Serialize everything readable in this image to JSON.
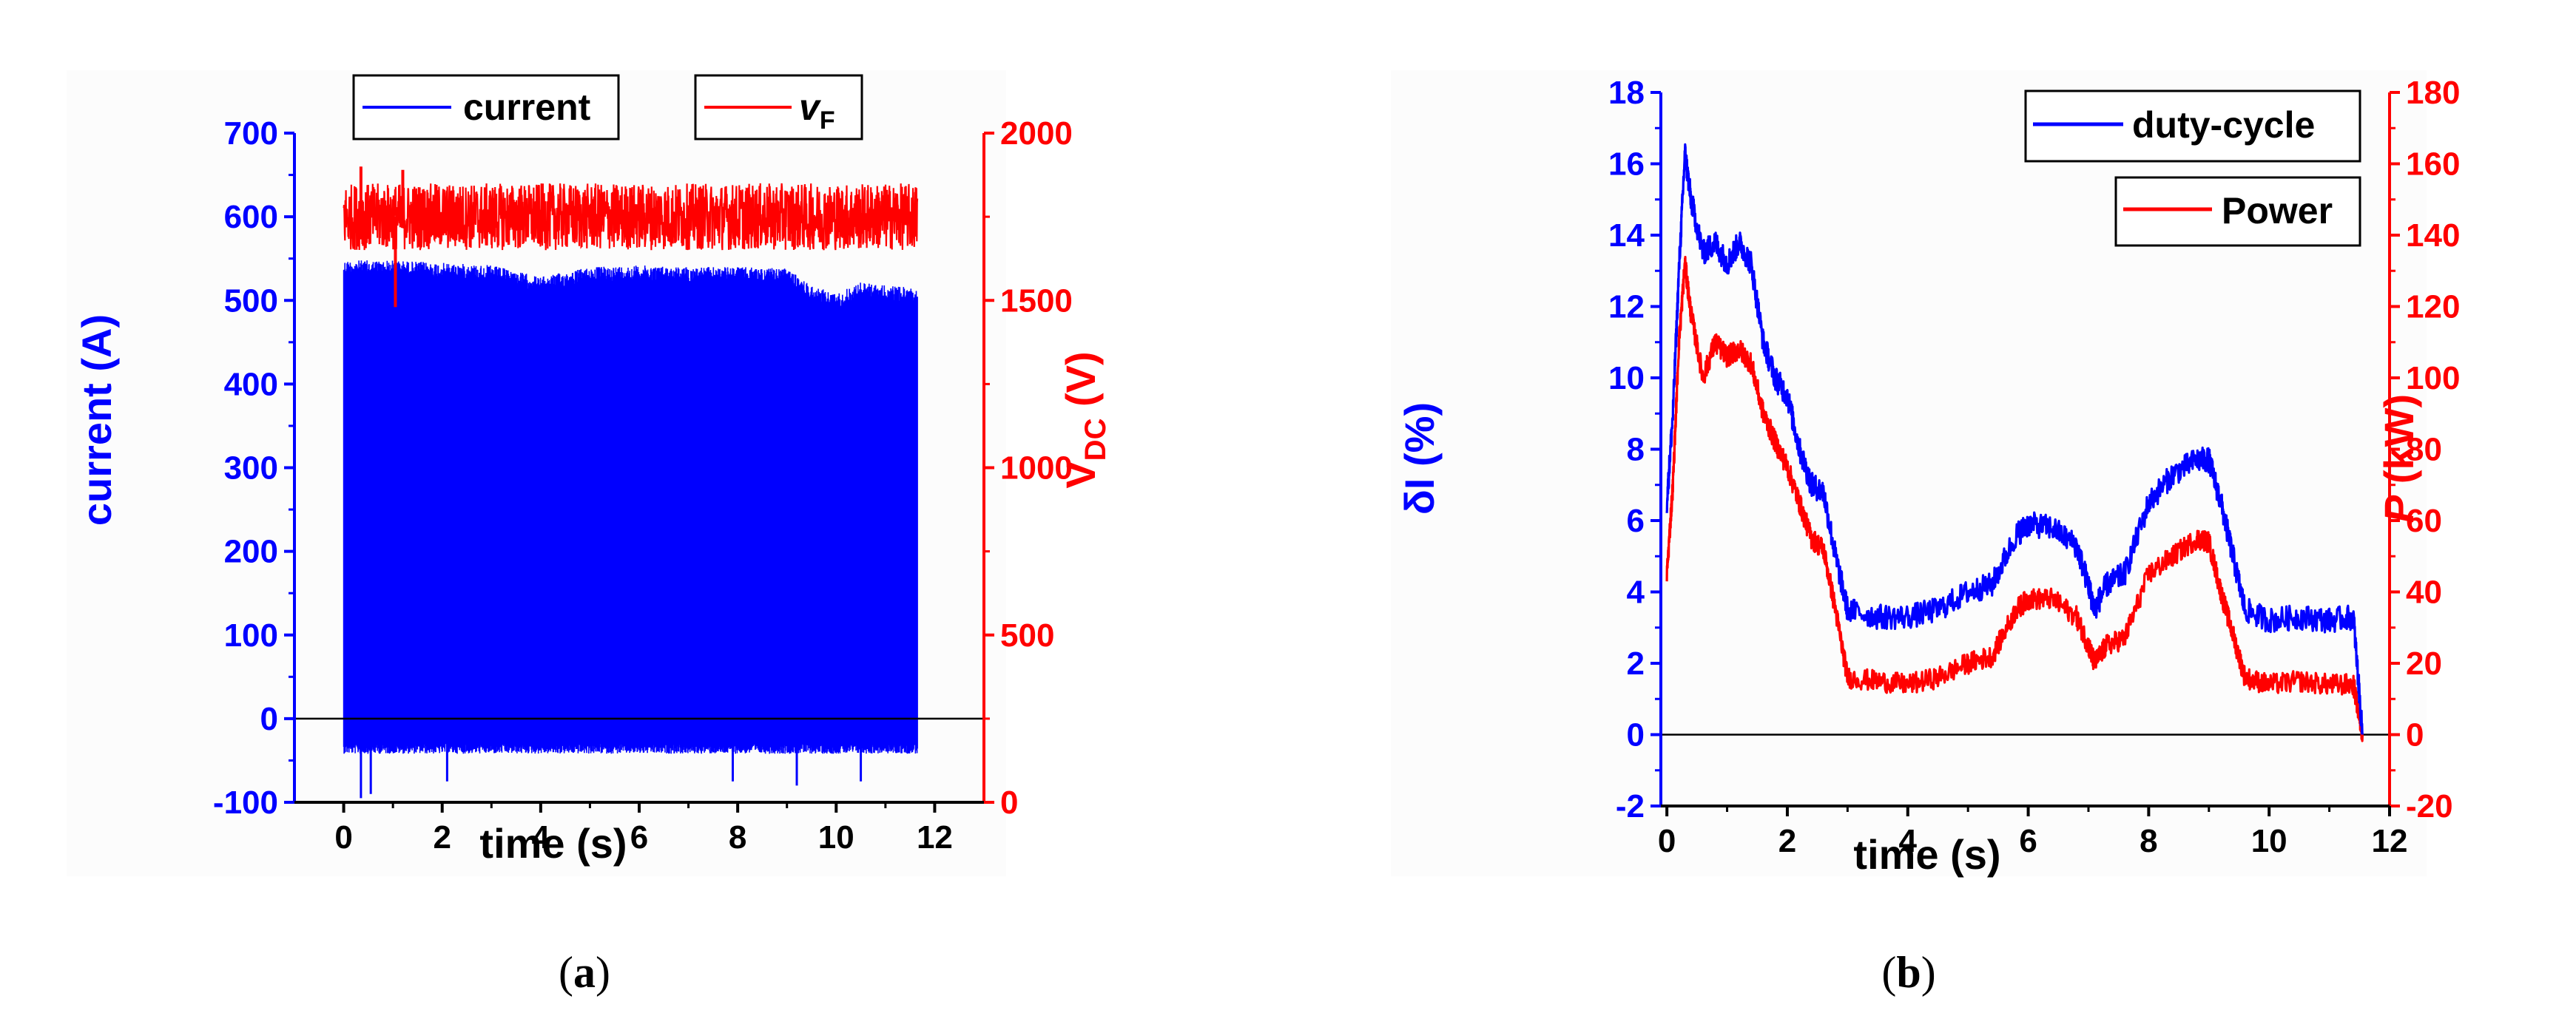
{
  "colors": {
    "blue": "#0000ff",
    "red": "#ff0000",
    "black": "#000000"
  },
  "chart_data": [
    {
      "type": "line",
      "panel": "a",
      "caption_open": "(",
      "caption_letter": "a",
      "caption_close": ")",
      "xlabel": "time (s)",
      "xlim": [
        -1,
        13
      ],
      "xticks": [
        0,
        2,
        4,
        6,
        8,
        10,
        12
      ],
      "ylabel": "current (A)",
      "ylim": [
        -100,
        700
      ],
      "yticks": [
        -100,
        0,
        100,
        200,
        300,
        400,
        500,
        600,
        700
      ],
      "y2label_main": "V",
      "y2label_sub": "DC",
      "y2label_unit": " (V)",
      "y2lim": [
        0,
        2000
      ],
      "y2ticks": [
        0,
        500,
        1000,
        1500,
        2000
      ],
      "legend": [
        {
          "label": "current",
          "italic": false,
          "sub": ""
        },
        {
          "label": "v",
          "italic": true,
          "sub": "F"
        }
      ],
      "series": [
        {
          "name": "current",
          "axis": "left",
          "color": "#0000ff",
          "kind": "band",
          "x_range": [
            0,
            11.65
          ],
          "low": -30,
          "high": 545,
          "envelope_x": [
            0,
            1,
            2,
            3,
            4,
            5,
            6,
            7,
            8,
            9,
            9.5,
            10,
            10.5,
            11,
            11.6
          ],
          "envelope_high": [
            548,
            548,
            545,
            542,
            528,
            540,
            542,
            540,
            540,
            538,
            518,
            508,
            522,
            518,
            515
          ],
          "spikes": [
            [
              0.35,
              -95
            ],
            [
              0.55,
              -90
            ],
            [
              2.1,
              -75
            ],
            [
              7.9,
              -75
            ],
            [
              9.2,
              -80
            ],
            [
              10.5,
              -75
            ]
          ]
        },
        {
          "name": "vF",
          "axis": "right",
          "color": "#ff0000",
          "kind": "band",
          "x_range": [
            0,
            11.65
          ],
          "low": 1650,
          "high": 1850,
          "spikes": [
            [
              1.05,
              1480
            ],
            [
              0.35,
              1900
            ],
            [
              1.2,
              1890
            ]
          ]
        },
        {
          "name": "zero-line",
          "axis": "left",
          "color": "#000000",
          "kind": "hline",
          "y": 0
        }
      ]
    },
    {
      "type": "line",
      "panel": "b",
      "caption_open": "(",
      "caption_letter": "b",
      "caption_close": ")",
      "xlabel": "time (s)",
      "xlim": [
        -0.1,
        12
      ],
      "xticks": [
        0,
        2,
        4,
        6,
        8,
        10,
        12
      ],
      "ylabel": "δI (%)",
      "ylim": [
        -2,
        18
      ],
      "yticks": [
        -2,
        0,
        2,
        4,
        6,
        8,
        10,
        12,
        14,
        16,
        18
      ],
      "y2label_italic": "P",
      "y2label_unit": " (kW)",
      "y2lim": [
        -20,
        180
      ],
      "y2ticks": [
        -20,
        0,
        20,
        40,
        60,
        80,
        100,
        120,
        140,
        160,
        180
      ],
      "legend": [
        {
          "label": "duty-cycle"
        },
        {
          "label": "Power"
        }
      ],
      "series": [
        {
          "name": "duty-cycle",
          "axis": "left",
          "color": "#0000ff",
          "x": [
            0,
            0.1,
            0.2,
            0.3,
            0.4,
            0.6,
            0.8,
            1.0,
            1.2,
            1.4,
            1.6,
            1.8,
            2.0,
            2.2,
            2.4,
            2.6,
            2.8,
            3.0,
            3.5,
            4.0,
            4.5,
            5.0,
            5.4,
            5.8,
            6.0,
            6.4,
            6.8,
            7.0,
            7.1,
            7.3,
            7.6,
            8.0,
            8.4,
            8.8,
            9.0,
            9.2,
            9.4,
            9.6,
            10.0,
            10.5,
            11.0,
            11.4,
            11.55
          ],
          "y": [
            6.5,
            9,
            13,
            16.3,
            15,
            13.5,
            13.8,
            13.2,
            13.8,
            13.2,
            11,
            10,
            9.5,
            8,
            7,
            6.8,
            5,
            3.5,
            3.3,
            3.3,
            3.5,
            4,
            4.2,
            5.6,
            5.9,
            5.8,
            5.3,
            4.2,
            3.5,
            4.2,
            4.5,
            6.5,
            7.3,
            7.7,
            7.7,
            6.5,
            5,
            3.5,
            3.2,
            3.3,
            3.2,
            3.3,
            0
          ],
          "noise": 0.35
        },
        {
          "name": "Power",
          "axis": "right",
          "color": "#ff0000",
          "x": [
            0,
            0.1,
            0.2,
            0.3,
            0.4,
            0.6,
            0.8,
            1.0,
            1.2,
            1.4,
            1.6,
            1.8,
            2.0,
            2.2,
            2.4,
            2.6,
            2.8,
            3.0,
            3.5,
            4.0,
            4.5,
            5.0,
            5.4,
            5.8,
            6.0,
            6.4,
            6.8,
            7.0,
            7.1,
            7.3,
            7.6,
            8.0,
            8.4,
            8.8,
            9.0,
            9.2,
            9.4,
            9.6,
            10.0,
            10.5,
            11.0,
            11.4,
            11.55
          ],
          "y": [
            45,
            70,
            110,
            132,
            118,
            100,
            110,
            106,
            108,
            104,
            90,
            82,
            75,
            65,
            55,
            52,
            35,
            16,
            15,
            14,
            16,
            20,
            22,
            35,
            38,
            38,
            33,
            25,
            20,
            25,
            27,
            45,
            50,
            55,
            54,
            40,
            28,
            16,
            14,
            15,
            14,
            14,
            0
          ],
          "noise": 3
        },
        {
          "name": "zero-line",
          "axis": "left",
          "color": "#000000",
          "kind": "hline",
          "y": 0
        }
      ]
    }
  ]
}
